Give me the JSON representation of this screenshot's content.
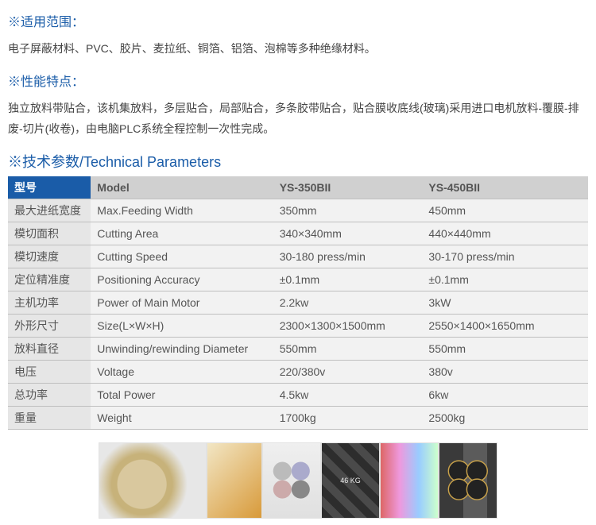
{
  "sections": {
    "scope": {
      "heading": "适用范围",
      "text": "电子屏蔽材料、PVC、胶片、麦拉纸、铜箔、铝箔、泡棉等多种绝缘材料。"
    },
    "features": {
      "heading": "性能特点",
      "text": "独立放料带贴合，该机集放料，多层贴合，局部贴合，多条胶带贴合，贴合膜收底线(玻璃)采用进口电机放料-覆膜-排废-切片(收卷)，由电脑PLC系统全程控制一次性完成。"
    },
    "tech": {
      "heading": "技术参数/Technical Parameters"
    }
  },
  "table": {
    "header": {
      "zh": "型号",
      "en": "Model",
      "m1": "YS-350BII",
      "m2": "YS-450BII"
    },
    "rows": [
      {
        "zh": "最大进纸宽度",
        "en": "Max.Feeding Width",
        "m1": "350mm",
        "m2": "450mm"
      },
      {
        "zh": "模切面积",
        "en": "Cutting Area",
        "m1": "340×340mm",
        "m2": "440×440mm"
      },
      {
        "zh": "模切速度",
        "en": "Cutting Speed",
        "m1": "30-180 press/min",
        "m2": "30-170 press/min"
      },
      {
        "zh": "定位精准度",
        "en": "Positioning Accuracy",
        "m1": "±0.1mm",
        "m2": "±0.1mm"
      },
      {
        "zh": "主机功率",
        "en": "Power of Main Motor",
        "m1": "2.2kw",
        "m2": "3kW"
      },
      {
        "zh": "外形尺寸",
        "en": "Size(L×W×H)",
        "m1": "2300×1300×1500mm",
        "m2": "2550×1400×1650mm"
      },
      {
        "zh": "放料直径",
        "en": "Unwinding/rewinding Diameter",
        "m1": "550mm",
        "m2": "550mm"
      },
      {
        "zh": "电压",
        "en": "Voltage",
        "m1": "220/380v",
        "m2": "380v"
      },
      {
        "zh": "总功率",
        "en": "Total Power",
        "m1": "4.5kw",
        "m2": "6kw"
      },
      {
        "zh": "重量",
        "en": "Weight",
        "m1": "1700kg",
        "m2": "2500kg"
      }
    ]
  },
  "colors": {
    "heading": "#1a5ca8",
    "header_bg_first": "#1a5ca8",
    "header_bg": "#d0d0d0",
    "row_first_bg": "#e6e6e6",
    "row_bg": "#f2f2f2",
    "border": "#bfbfbf",
    "text": "#444"
  },
  "gallery": [
    {
      "name": "label-rolls-photo"
    },
    {
      "name": "yellow-labels-photo"
    },
    {
      "name": "rsc-stickers-photo"
    },
    {
      "name": "kg-stickers-photo"
    },
    {
      "name": "holographic-stickers-photo"
    },
    {
      "name": "round-labels-photo"
    }
  ]
}
